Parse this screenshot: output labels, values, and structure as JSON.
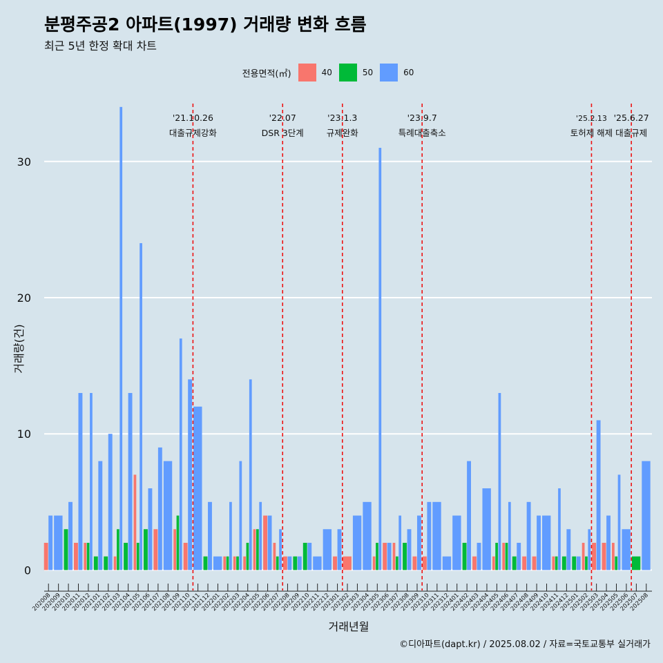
{
  "title": "분평주공2 아파트(1997) 거래량 변화 흐름",
  "subtitle": "최근 5년 한정 확대 차트",
  "credit": "©디아파트(dapt.kr) / 2025.08.02 / 자료=국토교통부 실거래가",
  "colors": {
    "background": "#d6e4ec",
    "s40": "#f8766d",
    "s50": "#00ba38",
    "s60": "#619cff",
    "event": "#ee1111",
    "grid": "#ffffff"
  },
  "chart_data": {
    "type": "bar",
    "title": "분평주공2 아파트(1997) 거래량 변화 흐름",
    "xlabel": "거래년월",
    "ylabel": "거래량(건)",
    "ylim": [
      -1.5,
      34.5
    ],
    "yticks": [
      0,
      10,
      20,
      30
    ],
    "grid": true,
    "legend": {
      "title": "전용면적(㎡)",
      "position": "top"
    },
    "categories": [
      "202008",
      "202009",
      "202010",
      "202011",
      "202012",
      "202101",
      "202102",
      "202103",
      "202104",
      "202105",
      "202106",
      "202107",
      "202108",
      "202109",
      "202110",
      "202111",
      "202112",
      "202201",
      "202202",
      "202203",
      "202204",
      "202205",
      "202206",
      "202207",
      "202208",
      "202209",
      "202210",
      "202211",
      "202212",
      "202301",
      "202302",
      "202303",
      "202304",
      "202305",
      "202306",
      "202307",
      "202308",
      "202309",
      "202310",
      "202311",
      "202312",
      "202401",
      "202402",
      "202403",
      "202404",
      "202405",
      "202406",
      "202407",
      "202408",
      "202409",
      "202410",
      "202411",
      "202412",
      "202501",
      "202502",
      "202503",
      "202504",
      "202505",
      "202506",
      "202507",
      "202508"
    ],
    "series": [
      {
        "name": "40",
        "values": [
          2,
          0,
          0,
          2,
          2,
          0,
          0,
          1,
          0,
          7,
          0,
          3,
          0,
          3,
          2,
          0,
          0,
          0,
          1,
          1,
          1,
          3,
          4,
          2,
          1,
          0,
          0,
          0,
          0,
          1,
          1,
          0,
          0,
          1,
          2,
          2,
          0,
          1,
          1,
          0,
          0,
          0,
          0,
          1,
          0,
          1,
          2,
          0,
          1,
          1,
          0,
          1,
          0,
          0,
          2,
          2,
          2,
          2,
          0,
          0,
          0
        ]
      },
      {
        "name": "50",
        "values": [
          0,
          0,
          3,
          0,
          2,
          1,
          1,
          3,
          2,
          2,
          3,
          0,
          0,
          4,
          0,
          0,
          1,
          0,
          1,
          1,
          2,
          3,
          0,
          1,
          0,
          1,
          2,
          0,
          0,
          0,
          0,
          0,
          0,
          2,
          0,
          1,
          2,
          0,
          0,
          0,
          0,
          0,
          2,
          0,
          0,
          2,
          2,
          1,
          0,
          0,
          0,
          1,
          1,
          1,
          1,
          0,
          0,
          1,
          0,
          1,
          0
        ]
      },
      {
        "name": "60",
        "values": [
          4,
          4,
          5,
          13,
          13,
          8,
          10,
          34,
          13,
          24,
          6,
          9,
          8,
          17,
          14,
          12,
          5,
          1,
          5,
          8,
          14,
          5,
          4,
          3,
          1,
          1,
          2,
          1,
          3,
          3,
          0,
          4,
          5,
          31,
          2,
          4,
          3,
          4,
          5,
          5,
          1,
          4,
          8,
          2,
          6,
          13,
          5,
          2,
          5,
          4,
          4,
          6,
          3,
          1,
          3,
          11,
          4,
          7,
          3,
          0,
          8
        ]
      }
    ],
    "events": [
      {
        "after": "202110",
        "date": "'21.10.26",
        "label": "대출규제강화"
      },
      {
        "after": "202207",
        "date": "'22.07",
        "label": "DSR 3단계"
      },
      {
        "after": "202301",
        "date": "'23.1.3",
        "label": "규제완화"
      },
      {
        "after": "202309",
        "date": "'23.9.7",
        "label": "특례대출축소"
      },
      {
        "after": "202502",
        "date": "'25.2.13",
        "label": "토허제 해제"
      },
      {
        "after": "202506",
        "date": "'25.6.27",
        "label": "대출규제"
      }
    ]
  }
}
